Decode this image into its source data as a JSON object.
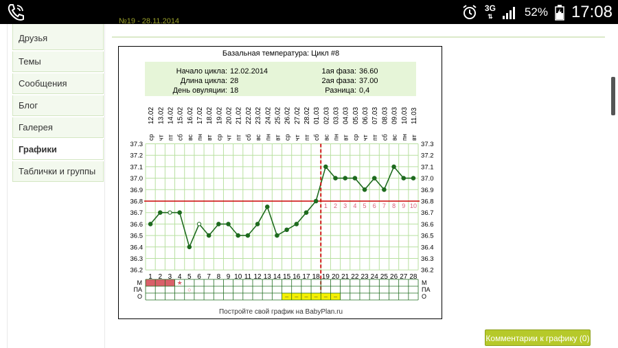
{
  "status_bar": {
    "signal_type": "3G",
    "battery": "52%",
    "time": "17:08"
  },
  "sidebar": {
    "items": [
      {
        "label": "Друзья"
      },
      {
        "label": "Темы"
      },
      {
        "label": "Сообщения"
      },
      {
        "label": "Блог"
      },
      {
        "label": "Галерея"
      },
      {
        "label": "Графики",
        "active": true
      },
      {
        "label": "Таблички и группы"
      }
    ]
  },
  "post_meta": "№19 - 28.11.2014",
  "chart_info": {
    "start_label": "Начало цикла:",
    "start_value": "12.02.2014",
    "length_label": "Длина цикла:",
    "length_value": "28",
    "ovulation_label": "День овуляции:",
    "ovulation_value": "18",
    "phase1_label": "1ая фаза:",
    "phase1_value": "36.60",
    "phase2_label": "2ая фаза:",
    "phase2_value": "37.00",
    "diff_label": "Разница:",
    "diff_value": "0,4"
  },
  "chart_data": {
    "type": "line",
    "title": "Базальная температура: Цикл #8",
    "dates": [
      "12.02",
      "13.02",
      "14.02",
      "15.02",
      "16.02",
      "17.02",
      "18.02",
      "19.02",
      "20.02",
      "21.02",
      "22.02",
      "23.02",
      "24.02",
      "25.02",
      "26.02",
      "27.02",
      "28.02",
      "01.03",
      "02.03",
      "03.03",
      "04.03",
      "05.03",
      "06.03",
      "07.03",
      "08.03",
      "09.03",
      "10.03",
      "11.03"
    ],
    "weekdays": [
      "ср",
      "чт",
      "пт",
      "сб",
      "вс",
      "пн",
      "вт",
      "ср",
      "чт",
      "пт",
      "сб",
      "вс",
      "пн",
      "вт",
      "ср",
      "чт",
      "пт",
      "сб",
      "вс",
      "пн",
      "вт",
      "ср",
      "чт",
      "пт",
      "сб",
      "вс",
      "пн",
      "вт"
    ],
    "days": [
      1,
      2,
      3,
      4,
      5,
      6,
      7,
      8,
      9,
      10,
      11,
      12,
      13,
      14,
      15,
      16,
      17,
      18,
      19,
      20,
      21,
      22,
      23,
      24,
      25,
      26,
      27,
      28
    ],
    "temperatures": [
      36.6,
      36.7,
      36.7,
      36.7,
      36.4,
      36.6,
      36.5,
      36.6,
      36.6,
      36.5,
      36.5,
      36.6,
      36.75,
      36.5,
      36.55,
      36.6,
      36.7,
      36.8,
      37.1,
      37.0,
      37.0,
      37.0,
      36.9,
      37.0,
      36.9,
      37.1,
      37.0,
      37.0
    ],
    "hollow_point_days": [
      3,
      6
    ],
    "ylim": [
      36.2,
      37.3
    ],
    "y_ticks": [
      "37.3",
      "37.2",
      "37.1",
      "37.0",
      "36.9",
      "36.8",
      "36.7",
      "36.6",
      "36.5",
      "36.4",
      "36.3",
      "36.2"
    ],
    "coverline": 36.8,
    "ovulation_day": 18,
    "luteal_labels": [
      "1",
      "2",
      "3",
      "4",
      "5",
      "6",
      "7",
      "8",
      "9",
      "10"
    ],
    "row_labels": [
      "М",
      "ПА",
      "О"
    ],
    "menstruation_days": [
      1,
      2,
      3
    ],
    "star_symbol": "★",
    "star_day": 4,
    "circle_symbol": "○",
    "circle_day": 5,
    "o_days": [
      15,
      16,
      17,
      18,
      19,
      20
    ],
    "o_symbol": "–",
    "footer": "Постройте свой график на BabyPlan.ru",
    "colors": {
      "line": "#1e6b1e",
      "grid": "#b8e0a0",
      "coverline": "#cc0000",
      "ovulation": "#cc0000",
      "luteal_label": "#d9607a",
      "menstruation": "#d9606a",
      "ovu_cell": "#f5f000",
      "info_bg": "#e6f5d8"
    }
  },
  "comments_button": "Комментарии к графику (0)"
}
